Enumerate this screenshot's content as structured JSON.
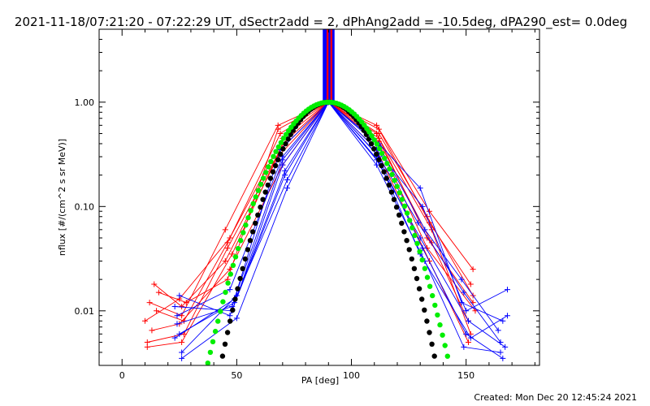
{
  "chart_data": {
    "type": "line",
    "title": "2021-11-18/07:21:20 - 07:22:29 UT, dSectr2add = 2, dPhAng2add = -10.5deg, dPA290_est=  0.0deg",
    "xlabel": "PA [deg]",
    "ylabel": "nflux [#/(cm^2 s sr MeV)]",
    "xlim": [
      -10,
      182
    ],
    "ylim": [
      0.003,
      5.0
    ],
    "yscale": "log",
    "grid": false,
    "x_ticks": [
      0,
      50,
      100,
      150
    ],
    "x_tick_labels": [
      "0",
      "50",
      "100",
      "150"
    ],
    "y_ticks": [
      0.01,
      0.1,
      1.0
    ],
    "y_tick_labels": [
      "0.01",
      "0.10",
      "1.00"
    ],
    "footer": "Created: Mon Dec 20 12:45:24 2021",
    "colors": {
      "red": "#ff0000",
      "blue": "#0000ff",
      "black": "#000000",
      "green": "#00ee00"
    },
    "vertical_band": {
      "x_range": [
        87.5,
        92.5
      ],
      "y_range": [
        1.0,
        5.0
      ],
      "colors": [
        "#0000ff",
        "#ff0000"
      ]
    },
    "series": [
      {
        "color": "red",
        "marker": "plus",
        "x": [
          12,
          26,
          45,
          68,
          90,
          112,
          134,
          152
        ],
        "y": [
          0.012,
          0.009,
          0.06,
          0.6,
          1.0,
          0.55,
          0.07,
          0.018
        ]
      },
      {
        "color": "red",
        "marker": "plus",
        "x": [
          10,
          25,
          47,
          70,
          90,
          111,
          133,
          153
        ],
        "y": [
          0.008,
          0.013,
          0.05,
          0.45,
          1.0,
          0.5,
          0.05,
          0.012
        ]
      },
      {
        "color": "red",
        "marker": "plus",
        "x": [
          11,
          27,
          46,
          69,
          90,
          112,
          135,
          151
        ],
        "y": [
          0.005,
          0.006,
          0.04,
          0.35,
          1.0,
          0.42,
          0.045,
          0.008
        ]
      },
      {
        "color": "red",
        "marker": "plus",
        "x": [
          14,
          26,
          45,
          68,
          90,
          111,
          134,
          153
        ],
        "y": [
          0.018,
          0.011,
          0.03,
          0.3,
          1.0,
          0.6,
          0.09,
          0.025
        ]
      },
      {
        "color": "red",
        "marker": "plus",
        "x": [
          13,
          25,
          47,
          70,
          90,
          112,
          133,
          154
        ],
        "y": [
          0.0065,
          0.0075,
          0.025,
          0.25,
          1.0,
          0.4,
          0.04,
          0.01
        ]
      },
      {
        "color": "red",
        "marker": "plus",
        "x": [
          15,
          27,
          46,
          69,
          90,
          112,
          135,
          152
        ],
        "y": [
          0.01,
          0.008,
          0.045,
          0.5,
          1.0,
          0.45,
          0.06,
          0.006
        ]
      },
      {
        "color": "red",
        "marker": "plus",
        "x": [
          11,
          26,
          48,
          70,
          90,
          111,
          134,
          151
        ],
        "y": [
          0.0045,
          0.005,
          0.035,
          0.4,
          1.0,
          0.35,
          0.03,
          0.005
        ]
      },
      {
        "color": "red",
        "marker": "plus",
        "x": [
          16,
          28,
          46,
          68,
          90,
          112,
          133,
          153
        ],
        "y": [
          0.015,
          0.012,
          0.02,
          0.55,
          1.0,
          0.5,
          0.08,
          0.014
        ]
      },
      {
        "color": "blue",
        "marker": "plus",
        "x": [
          24,
          47,
          70,
          90,
          112,
          130,
          148,
          166
        ],
        "y": [
          0.009,
          0.016,
          0.3,
          1.0,
          0.4,
          0.15,
          0.012,
          0.008
        ]
      },
      {
        "color": "blue",
        "marker": "plus",
        "x": [
          25,
          49,
          71,
          90,
          111,
          131,
          150,
          168
        ],
        "y": [
          0.006,
          0.012,
          0.22,
          1.0,
          0.35,
          0.1,
          0.01,
          0.016
        ]
      },
      {
        "color": "blue",
        "marker": "plus",
        "x": [
          23,
          48,
          70,
          90,
          112,
          129,
          149,
          165
        ],
        "y": [
          0.011,
          0.01,
          0.25,
          1.0,
          0.3,
          0.07,
          0.015,
          0.005
        ]
      },
      {
        "color": "blue",
        "marker": "plus",
        "x": [
          26,
          50,
          72,
          90,
          111,
          130,
          151,
          167
        ],
        "y": [
          0.004,
          0.014,
          0.18,
          1.0,
          0.28,
          0.05,
          0.008,
          0.0045
        ]
      },
      {
        "color": "blue",
        "marker": "plus",
        "x": [
          24,
          48,
          69,
          90,
          112,
          132,
          148,
          164
        ],
        "y": [
          0.0075,
          0.011,
          0.35,
          1.0,
          0.38,
          0.06,
          0.02,
          0.0065
        ]
      },
      {
        "color": "blue",
        "marker": "plus",
        "x": [
          25,
          47,
          71,
          90,
          111,
          131,
          150,
          166
        ],
        "y": [
          0.014,
          0.009,
          0.2,
          1.0,
          0.32,
          0.04,
          0.006,
          0.0035
        ]
      },
      {
        "color": "blue",
        "marker": "plus",
        "x": [
          23,
          49,
          70,
          90,
          112,
          130,
          152,
          168
        ],
        "y": [
          0.0055,
          0.013,
          0.28,
          1.0,
          0.27,
          0.035,
          0.0055,
          0.009
        ]
      },
      {
        "color": "blue",
        "marker": "plus",
        "x": [
          26,
          50,
          72,
          90,
          111,
          132,
          149,
          165
        ],
        "y": [
          0.0035,
          0.0085,
          0.15,
          1.0,
          0.25,
          0.03,
          0.0045,
          0.004
        ]
      }
    ],
    "model_curves": [
      {
        "name": "",
        "color": "black",
        "marker": "filled-circle",
        "center": 90,
        "sigma": 13.8,
        "x_range": [
          35,
          145
        ]
      },
      {
        "name": "",
        "color": "green",
        "marker": "filled-circle",
        "center": 90,
        "sigma": 15.5,
        "x_range": [
          33,
          147
        ]
      }
    ]
  }
}
